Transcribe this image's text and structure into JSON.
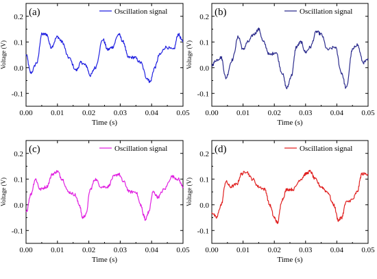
{
  "chart_data": [
    {
      "type": "line",
      "panel_label": "(a)",
      "legend": "Oscillation signal",
      "color": "#1f1fe0",
      "xlabel": "Time (s)",
      "ylabel": "Voltage (V)",
      "xlim": [
        0.0,
        0.05
      ],
      "ylim": [
        -0.15,
        0.25
      ],
      "xticks": [
        "0.00",
        "0.01",
        "0.02",
        "0.03",
        "0.04",
        "0.05"
      ],
      "yticks": [
        "-0.1",
        "0.0",
        "0.1",
        "0.2"
      ],
      "legend_position": "top-right",
      "grid": false,
      "series": [
        {
          "name": "Oscillation signal",
          "x": [
            0.0,
            0.0015,
            0.0035,
            0.005,
            0.0065,
            0.008,
            0.01,
            0.0115,
            0.0135,
            0.016,
            0.0175,
            0.019,
            0.0205,
            0.022,
            0.0245,
            0.026,
            0.0275,
            0.0295,
            0.031,
            0.0325,
            0.0345,
            0.0365,
            0.0385,
            0.0395,
            0.041,
            0.0425,
            0.0445,
            0.047,
            0.0485,
            0.05
          ],
          "y": [
            0.05,
            -0.02,
            0.02,
            0.13,
            0.13,
            0.08,
            0.12,
            0.1,
            0.04,
            -0.01,
            0.02,
            0.01,
            -0.03,
            0.0,
            0.11,
            0.07,
            0.08,
            0.13,
            0.1,
            0.04,
            0.04,
            0.02,
            -0.04,
            -0.055,
            0.0,
            0.05,
            0.08,
            0.07,
            0.13,
            0.1
          ]
        }
      ]
    },
    {
      "type": "line",
      "panel_label": "(b)",
      "legend": "Oscillation signal",
      "color": "#2b2b8c",
      "xlabel": "Time (s)",
      "ylabel": "Voltage (V)",
      "xlim": [
        0.0,
        0.05
      ],
      "ylim": [
        -0.15,
        0.25
      ],
      "xticks": [
        "0.00",
        "0.01",
        "0.02",
        "0.03",
        "0.04",
        "0.05"
      ],
      "yticks": [
        "-0.1",
        "0.0",
        "0.1",
        "0.2"
      ],
      "legend_position": "top-right",
      "grid": false,
      "series": [
        {
          "name": "Oscillation signal",
          "x": [
            0.0,
            0.0015,
            0.003,
            0.0045,
            0.0065,
            0.0085,
            0.01,
            0.0115,
            0.0135,
            0.015,
            0.0165,
            0.0185,
            0.0205,
            0.0225,
            0.024,
            0.0255,
            0.027,
            0.0285,
            0.03,
            0.0315,
            0.0335,
            0.035,
            0.037,
            0.0395,
            0.0415,
            0.043,
            0.045,
            0.0465,
            0.0485,
            0.05
          ],
          "y": [
            0.01,
            0.03,
            0.04,
            -0.04,
            0.03,
            0.12,
            0.07,
            0.1,
            0.13,
            0.15,
            0.1,
            0.05,
            0.06,
            -0.02,
            -0.08,
            -0.03,
            0.08,
            0.1,
            0.06,
            0.08,
            0.14,
            0.13,
            0.07,
            0.08,
            -0.02,
            -0.08,
            0.07,
            0.09,
            0.02,
            0.03
          ]
        }
      ]
    },
    {
      "type": "line",
      "panel_label": "(c)",
      "legend": "Oscillation signal",
      "color": "#e020e0",
      "xlabel": "Time (s)",
      "ylabel": "Voltage (V)",
      "xlim": [
        0.0,
        0.05
      ],
      "ylim": [
        -0.15,
        0.25
      ],
      "xticks": [
        "0.00",
        "0.01",
        "0.02",
        "0.03",
        "0.04",
        "0.05"
      ],
      "yticks": [
        "-0.1",
        "0.0",
        "0.1",
        "0.2"
      ],
      "legend_position": "top-right",
      "grid": false,
      "series": [
        {
          "name": "Oscillation signal",
          "x": [
            0.0,
            0.0015,
            0.003,
            0.0045,
            0.0065,
            0.0085,
            0.01,
            0.0115,
            0.0135,
            0.0155,
            0.017,
            0.018,
            0.019,
            0.0205,
            0.022,
            0.024,
            0.026,
            0.028,
            0.0295,
            0.031,
            0.033,
            0.035,
            0.0365,
            0.0375,
            0.038,
            0.039,
            0.0405,
            0.042,
            0.044,
            0.0465,
            0.0485,
            0.05
          ],
          "y": [
            -0.03,
            0.04,
            0.1,
            0.06,
            0.07,
            0.12,
            0.13,
            0.1,
            0.05,
            0.04,
            0.0,
            -0.05,
            -0.04,
            0.06,
            0.1,
            0.07,
            0.07,
            0.11,
            0.12,
            0.09,
            0.05,
            0.05,
            0.0,
            -0.04,
            -0.06,
            -0.03,
            0.05,
            0.03,
            0.06,
            0.11,
            0.1,
            0.07
          ]
        }
      ]
    },
    {
      "type": "line",
      "panel_label": "(d)",
      "legend": "Oscillation signal",
      "color": "#e02020",
      "xlabel": "Time (s)",
      "ylabel": "Voltage (V)",
      "xlim": [
        0.0,
        0.05
      ],
      "ylim": [
        -0.15,
        0.25
      ],
      "xticks": [
        "0.00",
        "0.01",
        "0.02",
        "0.03",
        "0.04",
        "0.05"
      ],
      "yticks": [
        "-0.1",
        "0.0",
        "0.1",
        "0.2"
      ],
      "legend_position": "top-right",
      "grid": false,
      "series": [
        {
          "name": "Oscillation signal",
          "x": [
            0.0,
            0.0015,
            0.003,
            0.0045,
            0.006,
            0.008,
            0.0095,
            0.011,
            0.013,
            0.015,
            0.017,
            0.0185,
            0.02,
            0.021,
            0.0225,
            0.024,
            0.026,
            0.0285,
            0.03,
            0.0315,
            0.033,
            0.035,
            0.037,
            0.039,
            0.0405,
            0.0415,
            0.043,
            0.045,
            0.0465,
            0.048,
            0.05
          ],
          "y": [
            -0.03,
            -0.05,
            0.0,
            0.09,
            0.07,
            0.08,
            0.12,
            0.13,
            0.1,
            0.07,
            0.06,
            0.0,
            -0.05,
            -0.07,
            0.02,
            0.06,
            0.06,
            0.1,
            0.12,
            0.13,
            0.1,
            0.07,
            0.05,
            0.0,
            -0.06,
            -0.05,
            0.01,
            0.02,
            0.05,
            0.12,
            0.12
          ]
        }
      ]
    }
  ]
}
